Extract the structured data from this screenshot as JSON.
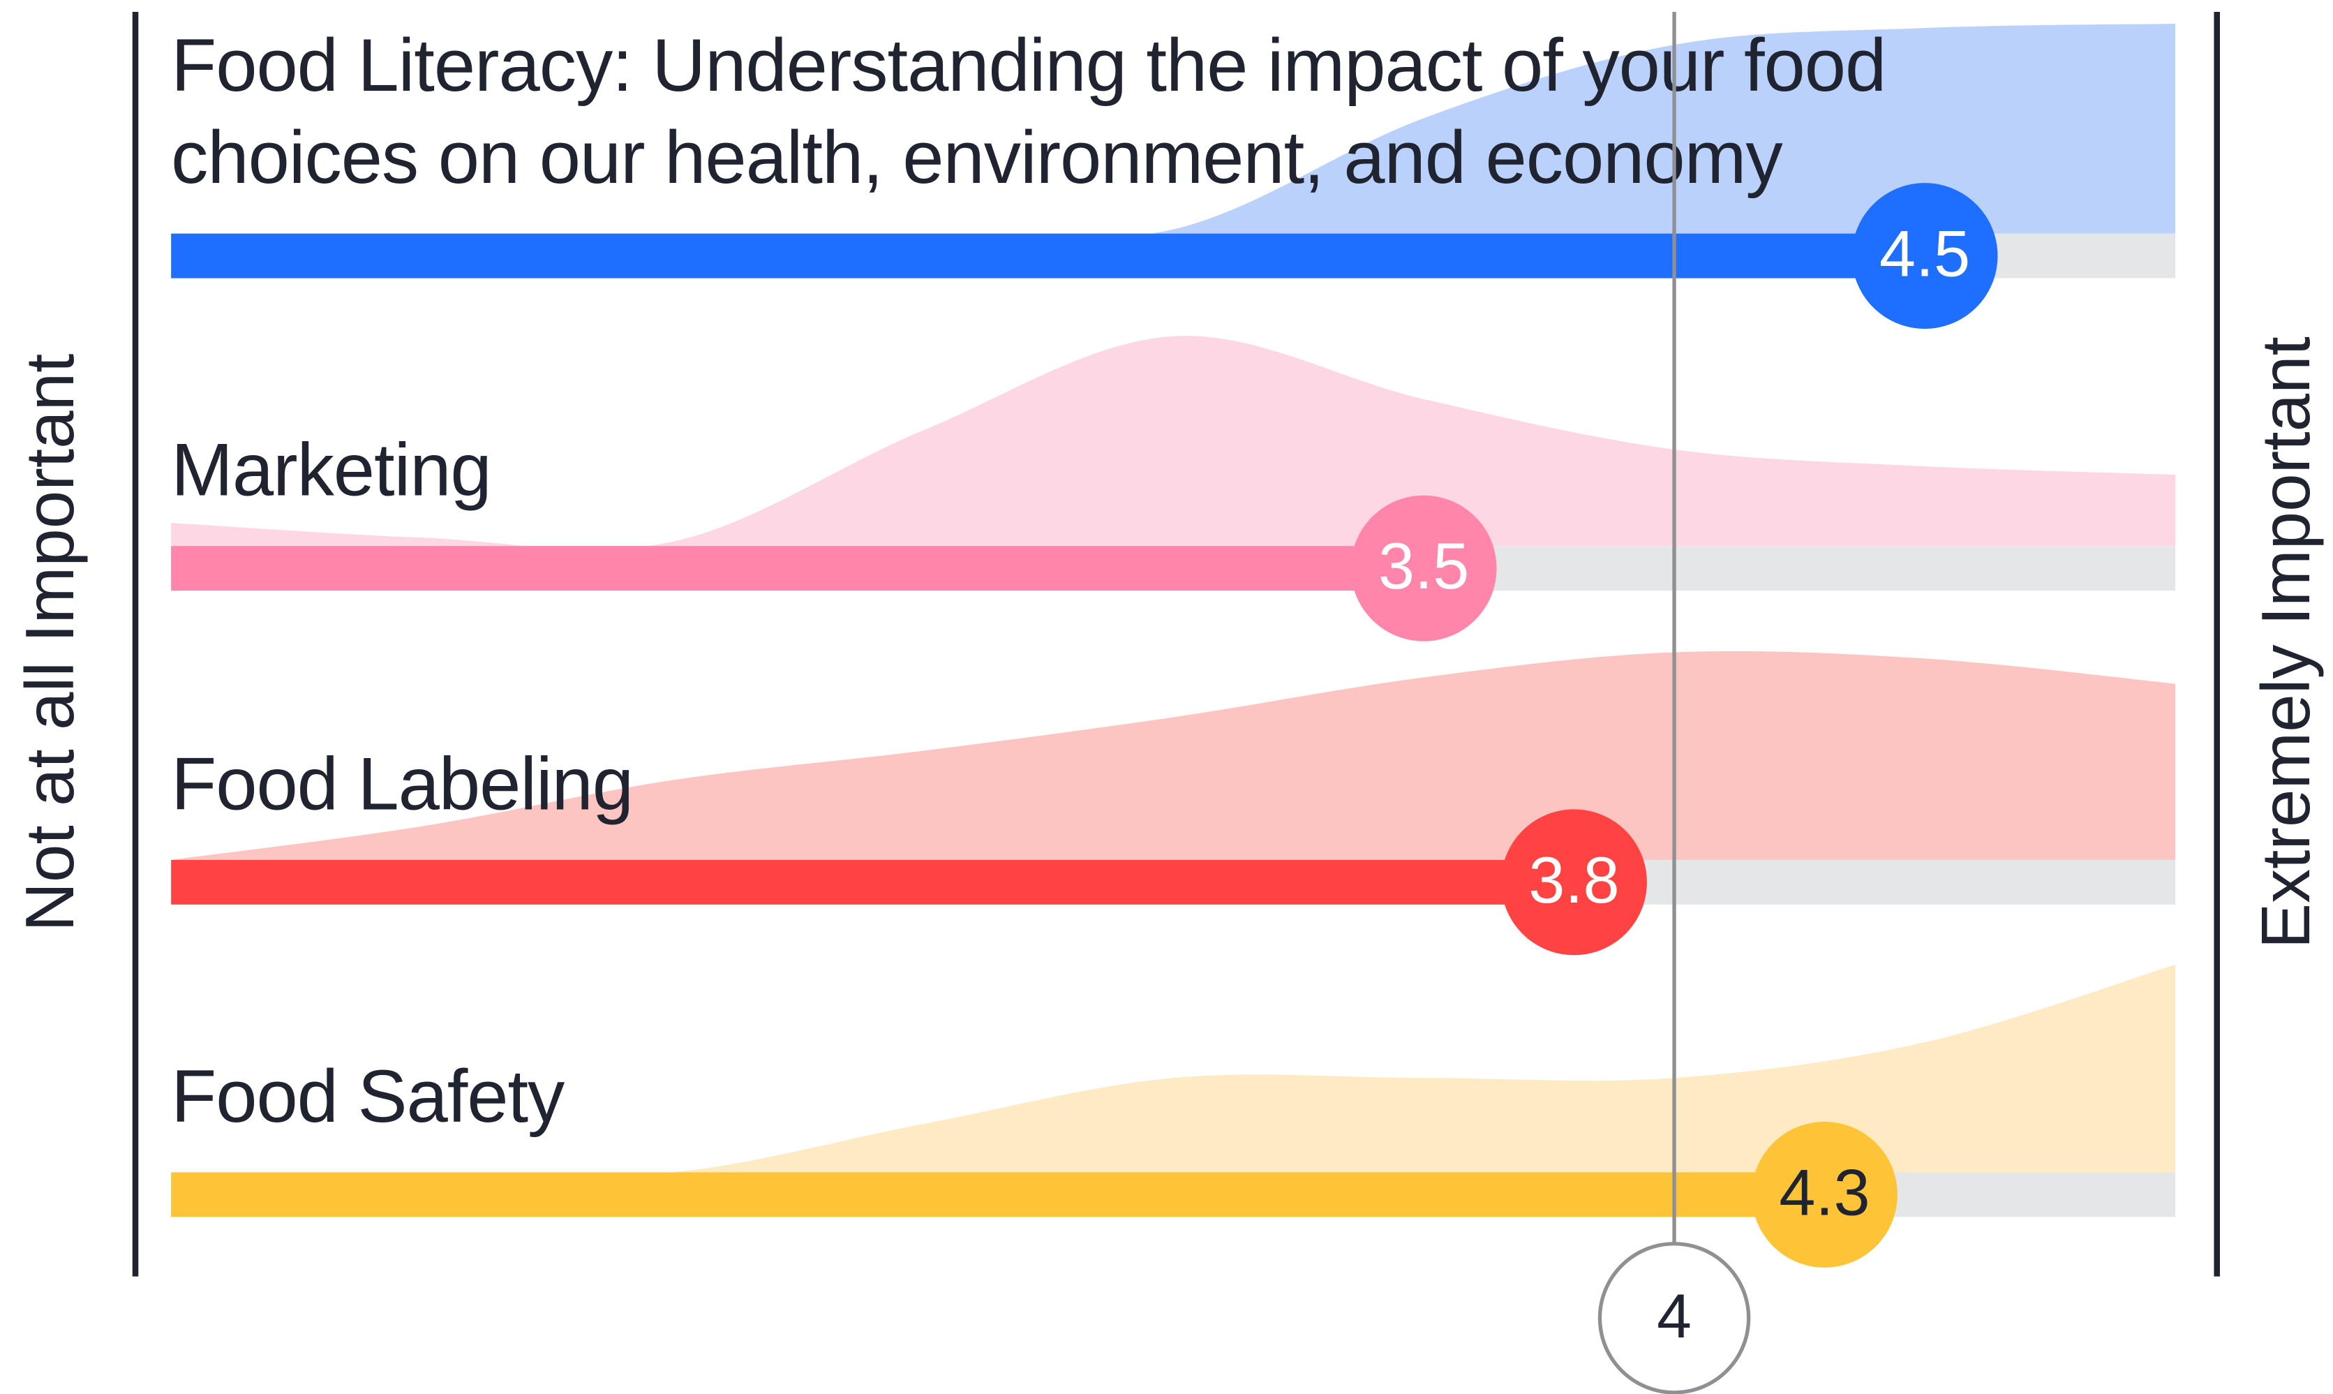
{
  "chart_data": {
    "type": "rating",
    "left_label": "Not at all Important",
    "right_label": "Extremely Important",
    "xlim": [
      1,
      5
    ],
    "reference": 4,
    "density_x": [
      1,
      1.5,
      2,
      2.5,
      3,
      3.5,
      4,
      4.5,
      5
    ],
    "density_lim": [
      0,
      1
    ],
    "track_color": "#e5e6e8",
    "series": [
      {
        "name": "Food Literacy: Understanding the impact of your food choices on our health, environment, and economy",
        "value": 4.5,
        "color": "#1f6fff",
        "area_color": "#bad1fb",
        "label_color": "#ffffff",
        "density": [
          0,
          0,
          0,
          0,
          0.02,
          0.55,
          0.9,
          0.98,
          1.0
        ]
      },
      {
        "name": "Marketing",
        "value": 3.5,
        "color": "#ff85ab",
        "area_color": "#fdd7e3",
        "label_color": "#ffffff",
        "density": [
          0.11,
          0.04,
          0.02,
          0.55,
          1.0,
          0.7,
          0.46,
          0.38,
          0.34
        ]
      },
      {
        "name": "Food Labeling",
        "value": 3.8,
        "color": "#ff4242",
        "area_color": "#fdc5c2",
        "label_color": "#ffffff",
        "density": [
          0,
          0.16,
          0.38,
          0.52,
          0.68,
          0.87,
          0.99,
          0.96,
          0.84
        ]
      },
      {
        "name": "Food Safety",
        "value": 4.3,
        "color": "#fec438",
        "area_color": "#feebc3",
        "label_color": "#1f2430",
        "density": [
          0,
          0,
          0,
          0.23,
          0.45,
          0.45,
          0.45,
          0.62,
          0.99
        ]
      }
    ]
  }
}
